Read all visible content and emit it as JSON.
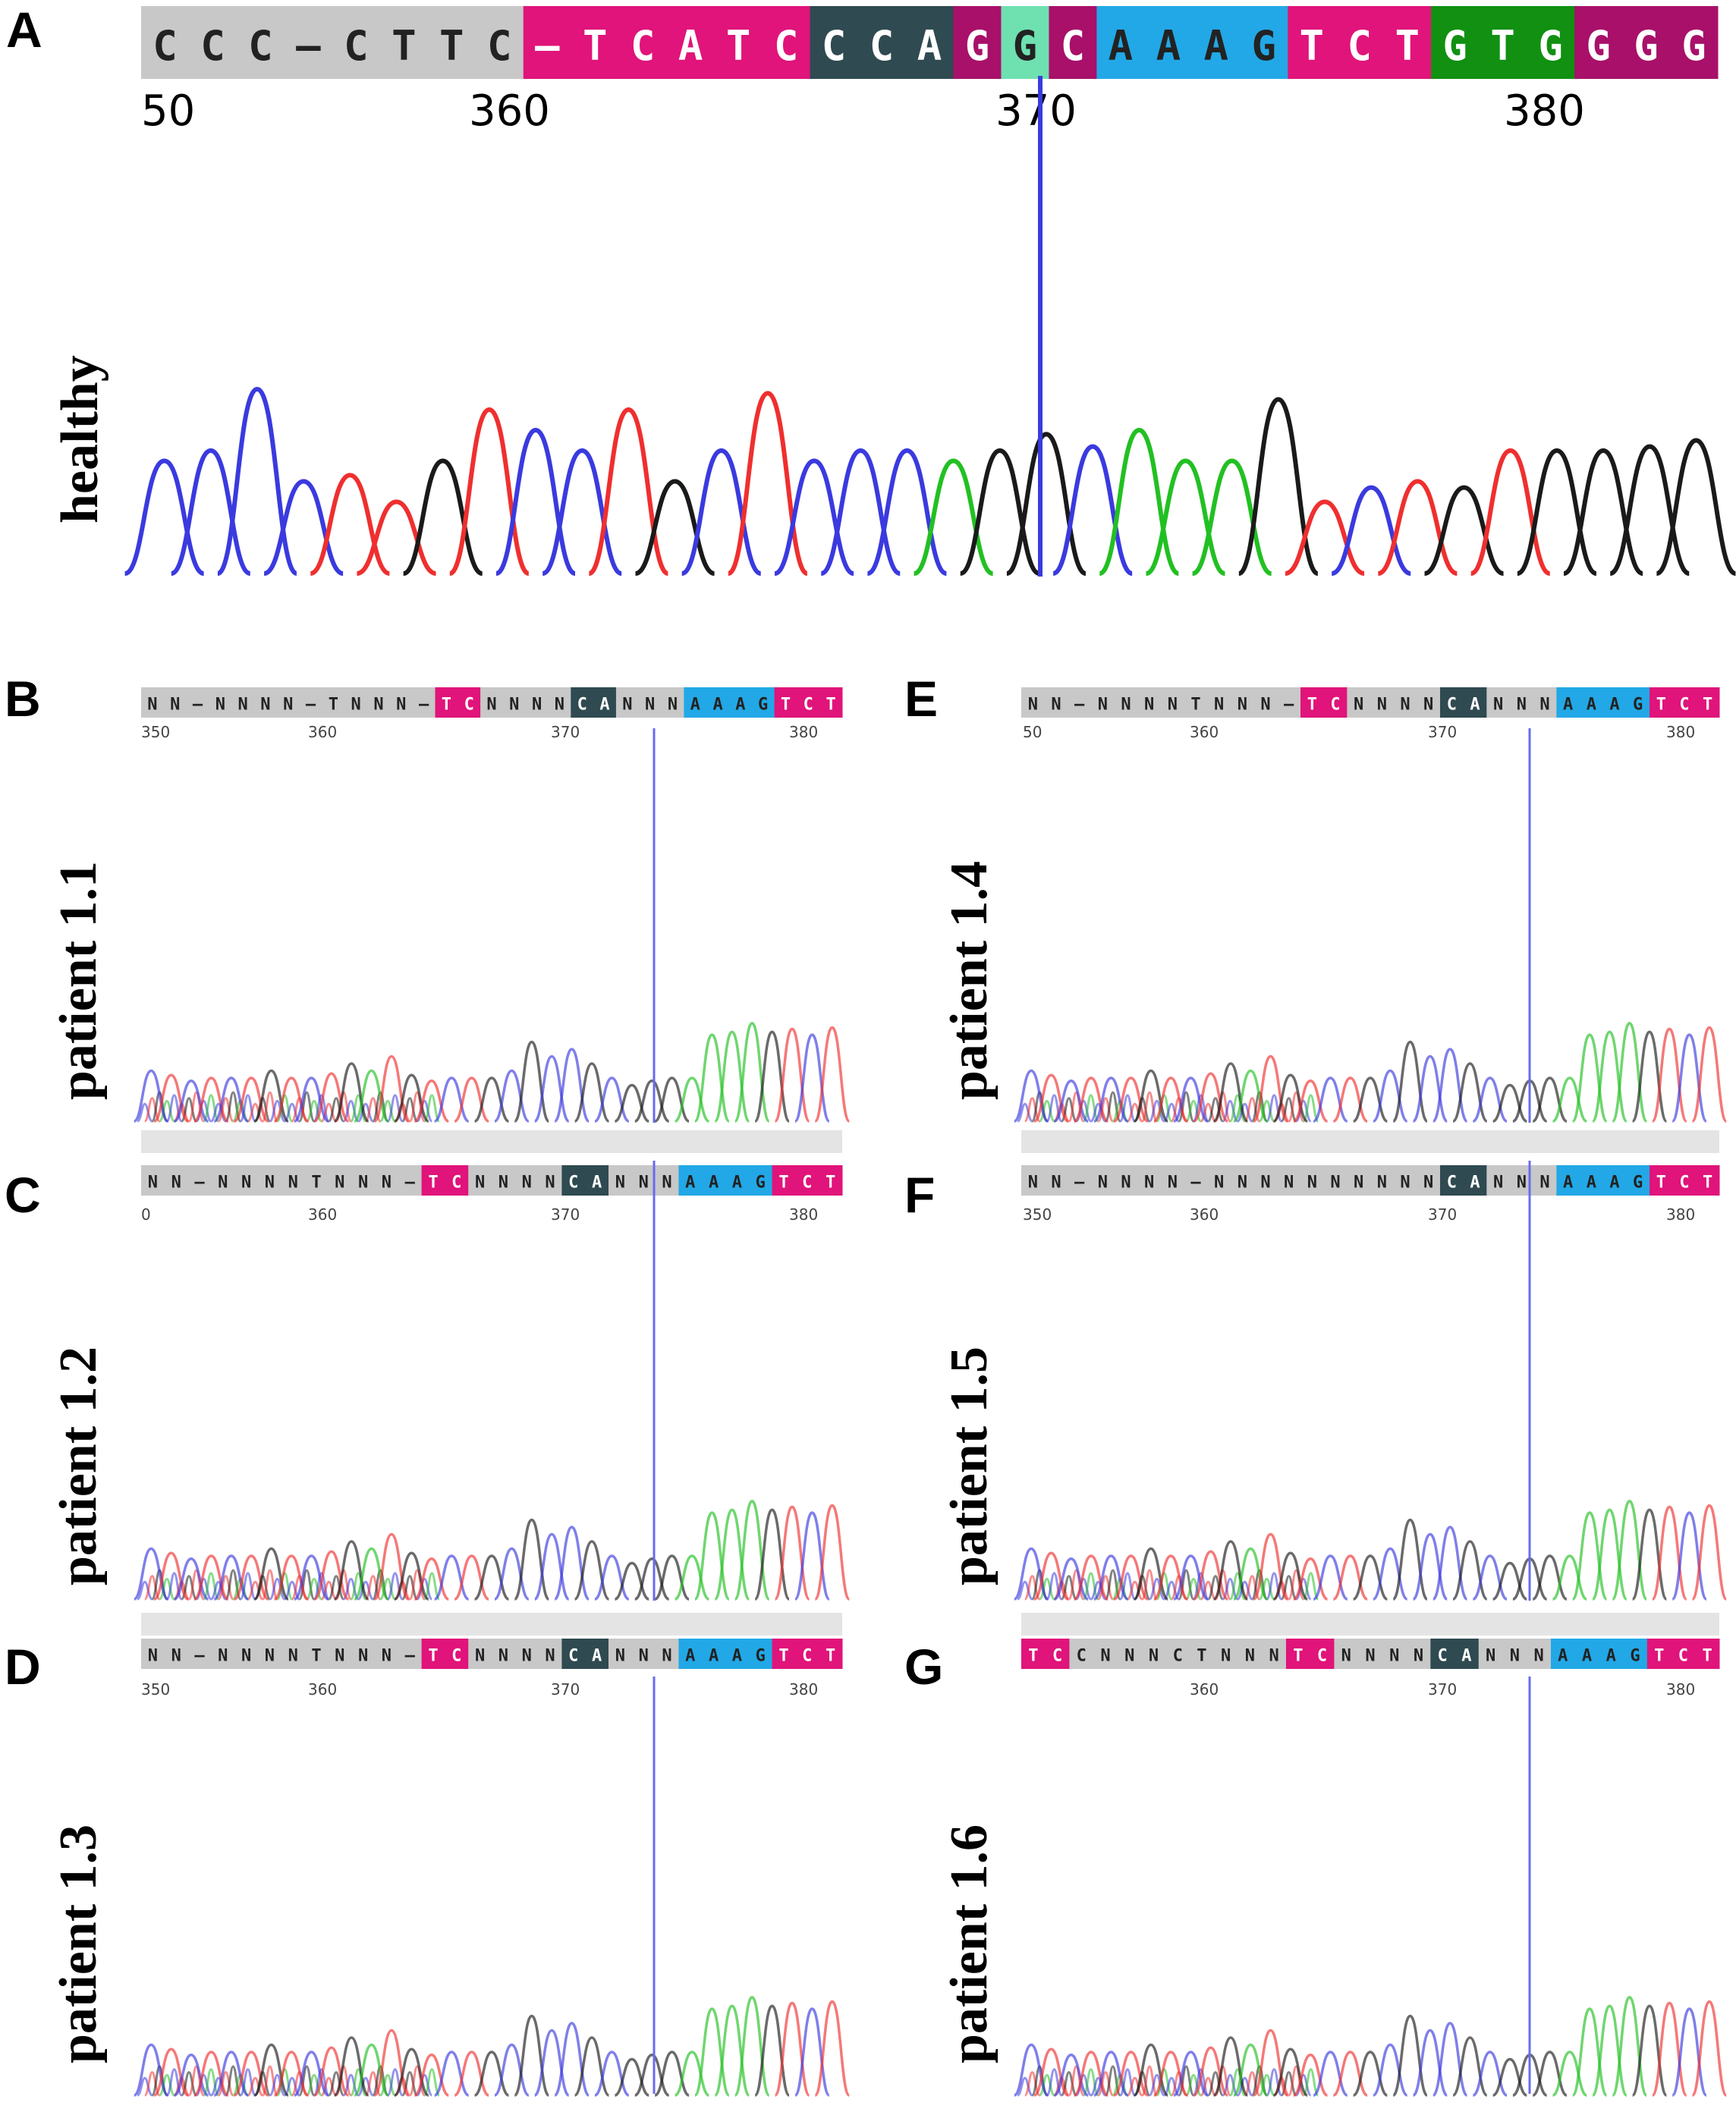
{
  "colors": {
    "A": "#22c022",
    "C": "#3a3adf",
    "G": "#1a1a1a",
    "T": "#ef2f2f",
    "cursor": "#4848e0",
    "box_T": "#e0147a",
    "box_C": "#2f4a50",
    "box_G_dark": "#a8106a",
    "box_G_green": "#119011",
    "box_A": "#22a8e6",
    "box_gray": "#c8c8c8",
    "box_highlight": "#6fe0b0"
  },
  "panels": [
    {
      "id": "A",
      "letter": "A",
      "side_label": "healthy",
      "sequence_text": "CCC–CTTC–TCATCCCAGGCAAAGTCTGTGGGG",
      "ticks": [
        "50",
        "360",
        "370",
        "380"
      ],
      "trace_pattern": "CCCCTTGTCCTGCTCCCAGGCAAAGTCTGTGGGG",
      "trace_heights": [
        0.55,
        0.6,
        0.9,
        0.45,
        0.48,
        0.35,
        0.55,
        0.8,
        0.7,
        0.6,
        0.8,
        0.45,
        0.6,
        0.88,
        0.55,
        0.6,
        0.6,
        0.55,
        0.6,
        0.68,
        0.62,
        0.7,
        0.55,
        0.55,
        0.85,
        0.35,
        0.42,
        0.45,
        0.42,
        0.6,
        0.6,
        0.6,
        0.62,
        0.65
      ]
    },
    {
      "id": "B",
      "letter": "B",
      "side_label": "patient 1.1",
      "sequence_text": "NN–NNNN–TNNN–TCNNNNCANNNAAAGTCT",
      "ticks": [
        "350",
        "360",
        "370",
        "380"
      ]
    },
    {
      "id": "C",
      "letter": "C",
      "side_label": "patient 1.2",
      "sequence_text": "NN–NNNNTNNN–TCNNNNCANNNAAAGTCT",
      "ticks": [
        "0",
        "360",
        "370",
        "380"
      ]
    },
    {
      "id": "D",
      "letter": "D",
      "side_label": "patient 1.3",
      "sequence_text": "NN–NNNNTNNN–TCNNNNCANNNAAAGTCT",
      "ticks": [
        "350",
        "360",
        "370",
        "380"
      ]
    },
    {
      "id": "E",
      "letter": "E",
      "side_label": "patient 1.4",
      "sequence_text": "NN–NNNNTNNN–TCNNNNCANNNAAAGTCT",
      "ticks": [
        "50",
        "360",
        "370",
        "380"
      ]
    },
    {
      "id": "F",
      "letter": "F",
      "side_label": "patient 1.5",
      "sequence_text": "NN–NNNN–NNNNNNNNNNCANNNAAAGTCT",
      "ticks": [
        "350",
        "360",
        "370",
        "380"
      ]
    },
    {
      "id": "G",
      "letter": "G",
      "side_label": "patient 1.6",
      "sequence_text": "TCCNNNCTNNNTCNNNNCANNNAAAGTCT",
      "ticks": [
        "360",
        "370",
        "380"
      ]
    }
  ],
  "patient_trace": {
    "pattern": "CTCTCTGTCTGATGTCTGCGCCGCGGGAAAAGTCT",
    "heights": [
      0.35,
      0.32,
      0.28,
      0.3,
      0.3,
      0.3,
      0.35,
      0.3,
      0.3,
      0.33,
      0.4,
      0.35,
      0.45,
      0.32,
      0.28,
      0.3,
      0.3,
      0.3,
      0.35,
      0.55,
      0.45,
      0.5,
      0.4,
      0.3,
      0.25,
      0.28,
      0.3,
      0.3,
      0.6,
      0.62,
      0.68,
      0.62,
      0.64,
      0.6,
      0.65
    ]
  }
}
